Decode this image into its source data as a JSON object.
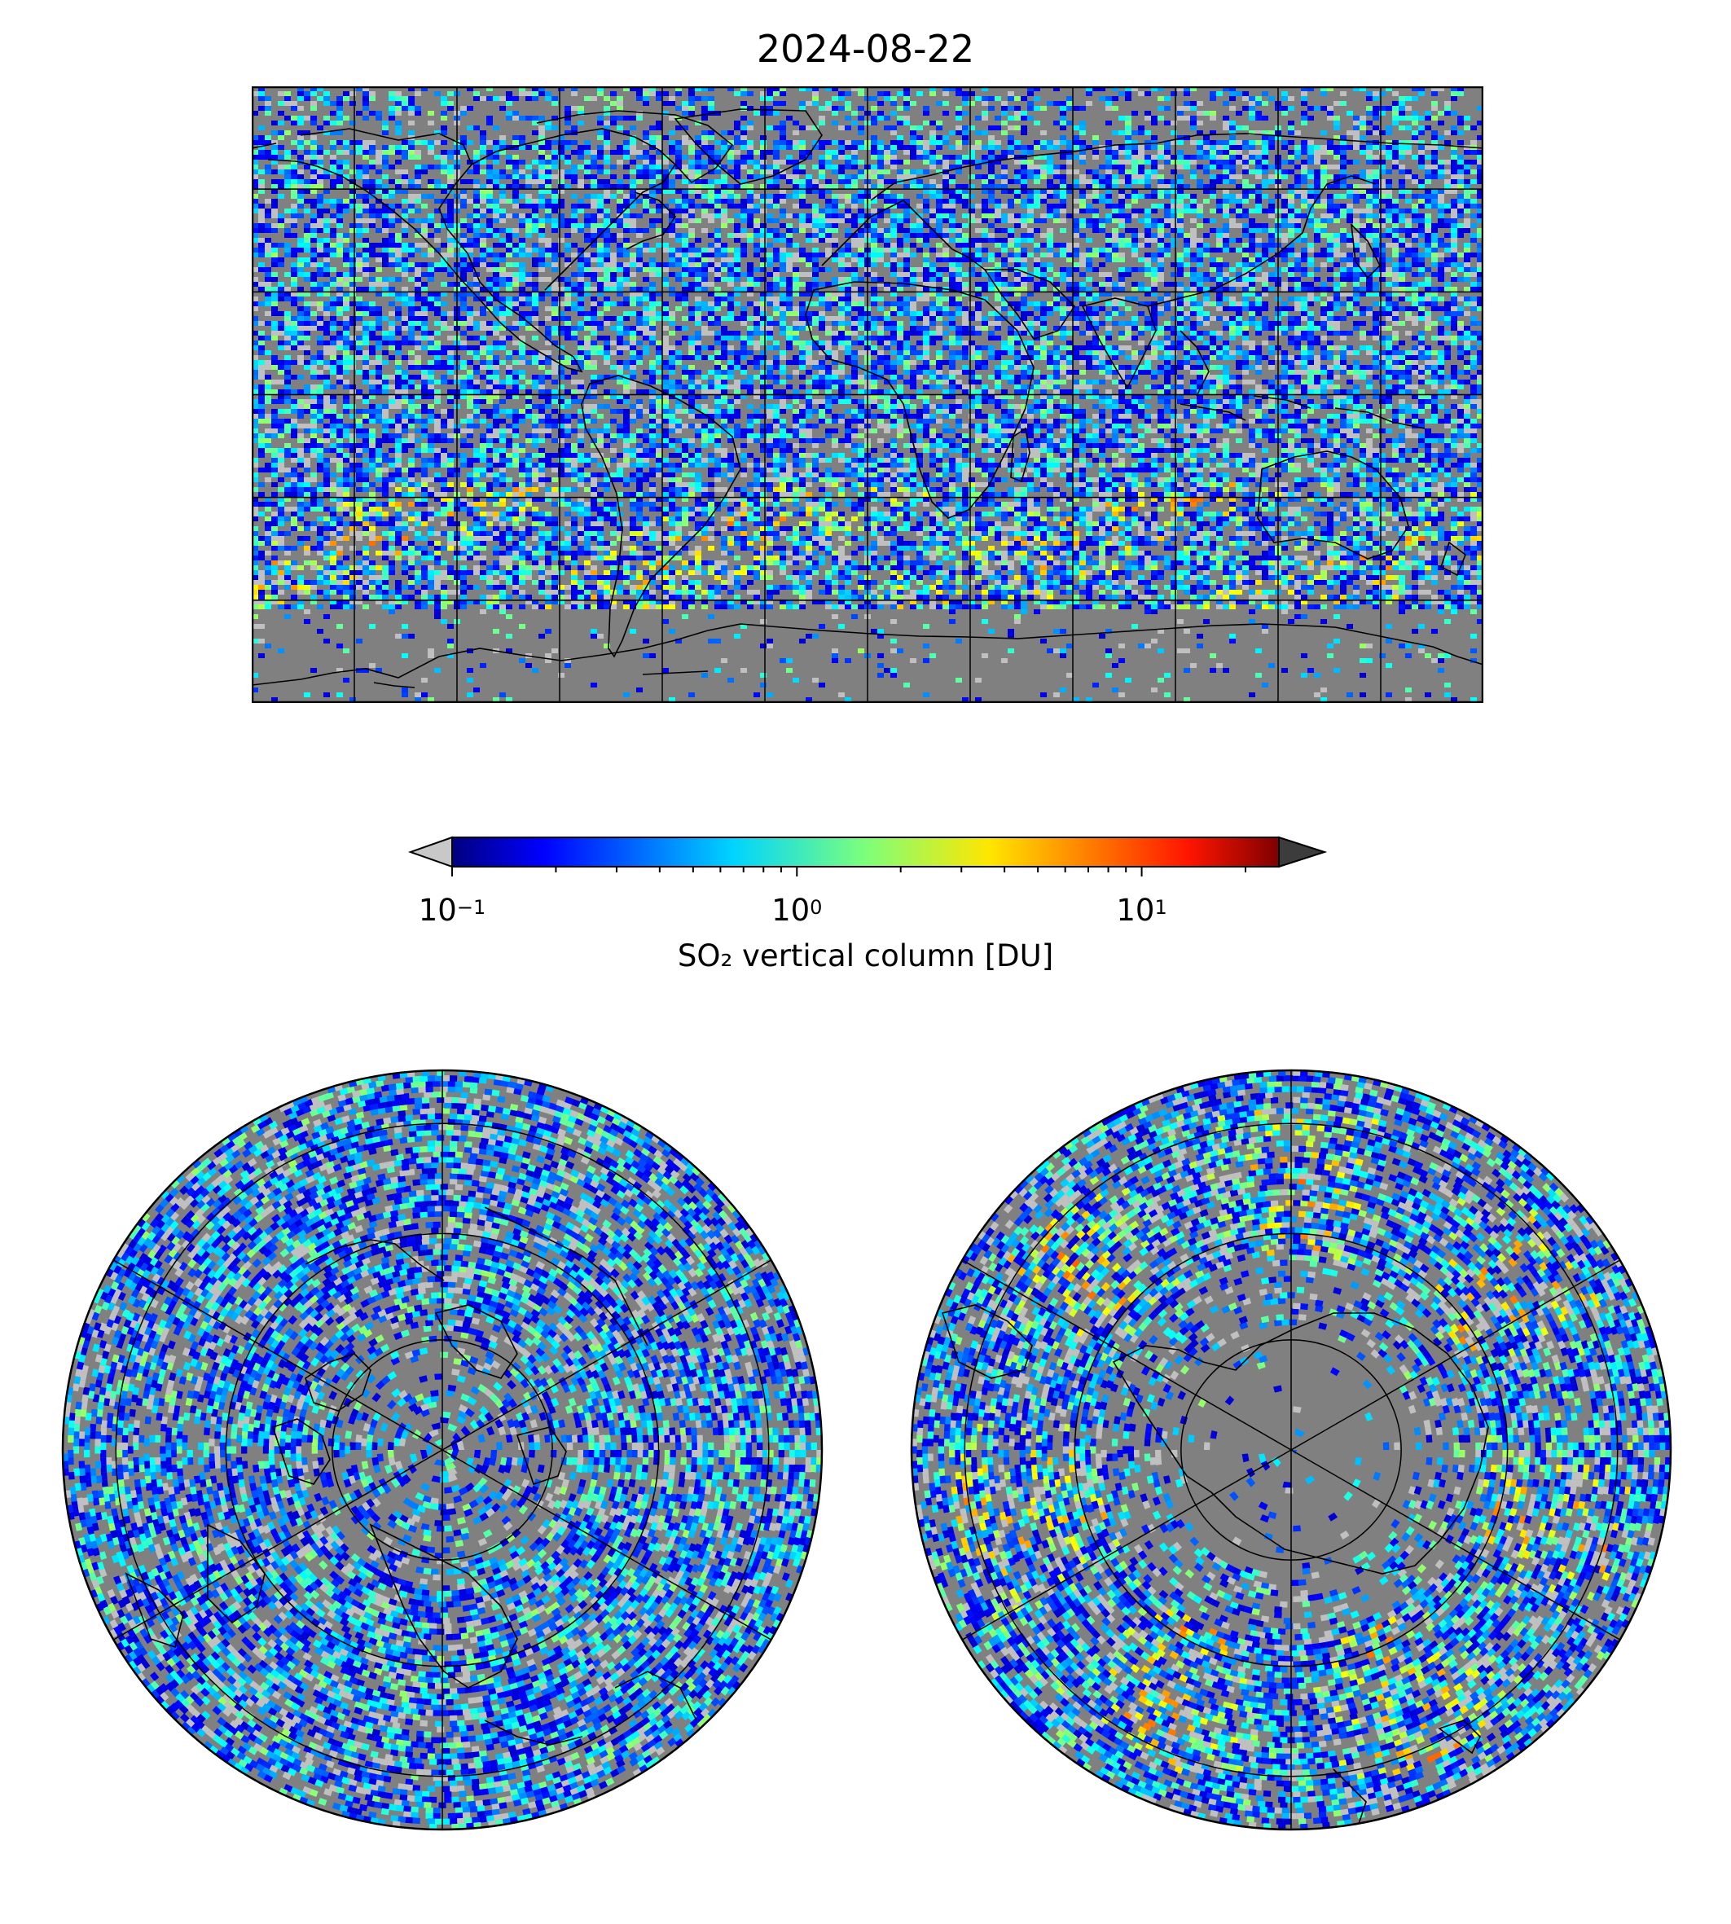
{
  "title": "2024-08-22",
  "colorbar": {
    "label": "SO₂ vertical column [DU]",
    "scale": "log",
    "range": [
      0.1,
      25
    ],
    "colormap": "jet",
    "under_color": "#c8c8c8",
    "over_color": "#3c3c3c",
    "ticks": [
      {
        "base": "10",
        "exponent": "−1",
        "value": 0.1
      },
      {
        "base": "10",
        "exponent": "0",
        "value": 1
      },
      {
        "base": "10",
        "exponent": "1",
        "value": 10
      }
    ]
  },
  "maps": {
    "global": {
      "projection": "plate-carree",
      "background": "#808080"
    },
    "north_polar": {
      "projection": "north-polar-stereographic",
      "background": "#808080"
    },
    "south_polar": {
      "projection": "south-polar-stereographic",
      "background": "#808080"
    }
  }
}
